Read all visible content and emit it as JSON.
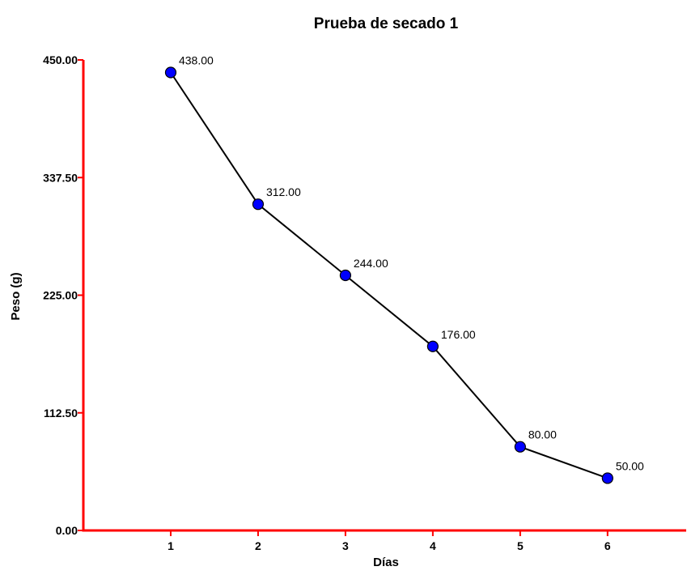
{
  "chart_data": {
    "type": "line",
    "title": "Prueba de secado 1",
    "xlabel": "Días",
    "ylabel": "Peso  (g)",
    "x": [
      1,
      2,
      3,
      4,
      5,
      6
    ],
    "x_ticks": [
      "1",
      "2",
      "3",
      "4",
      "5",
      "6"
    ],
    "x_range": [
      0,
      6.9
    ],
    "ylim": [
      0,
      450
    ],
    "y_ticks": [
      "0.00",
      "112.50",
      "225.00",
      "337.50",
      "450.00"
    ],
    "y_tick_values": [
      0,
      112.5,
      225,
      337.5,
      450
    ],
    "series": [
      {
        "values": [
          438,
          312,
          244,
          176,
          80,
          50
        ],
        "data_labels": [
          "438.00",
          "312.00",
          "244.00",
          "176.00",
          "80.00",
          "50.00"
        ],
        "line_color": "#000000",
        "marker_color": "#0000ff"
      }
    ],
    "axis_color": "#ff0000",
    "grid": false,
    "legend": "none"
  }
}
